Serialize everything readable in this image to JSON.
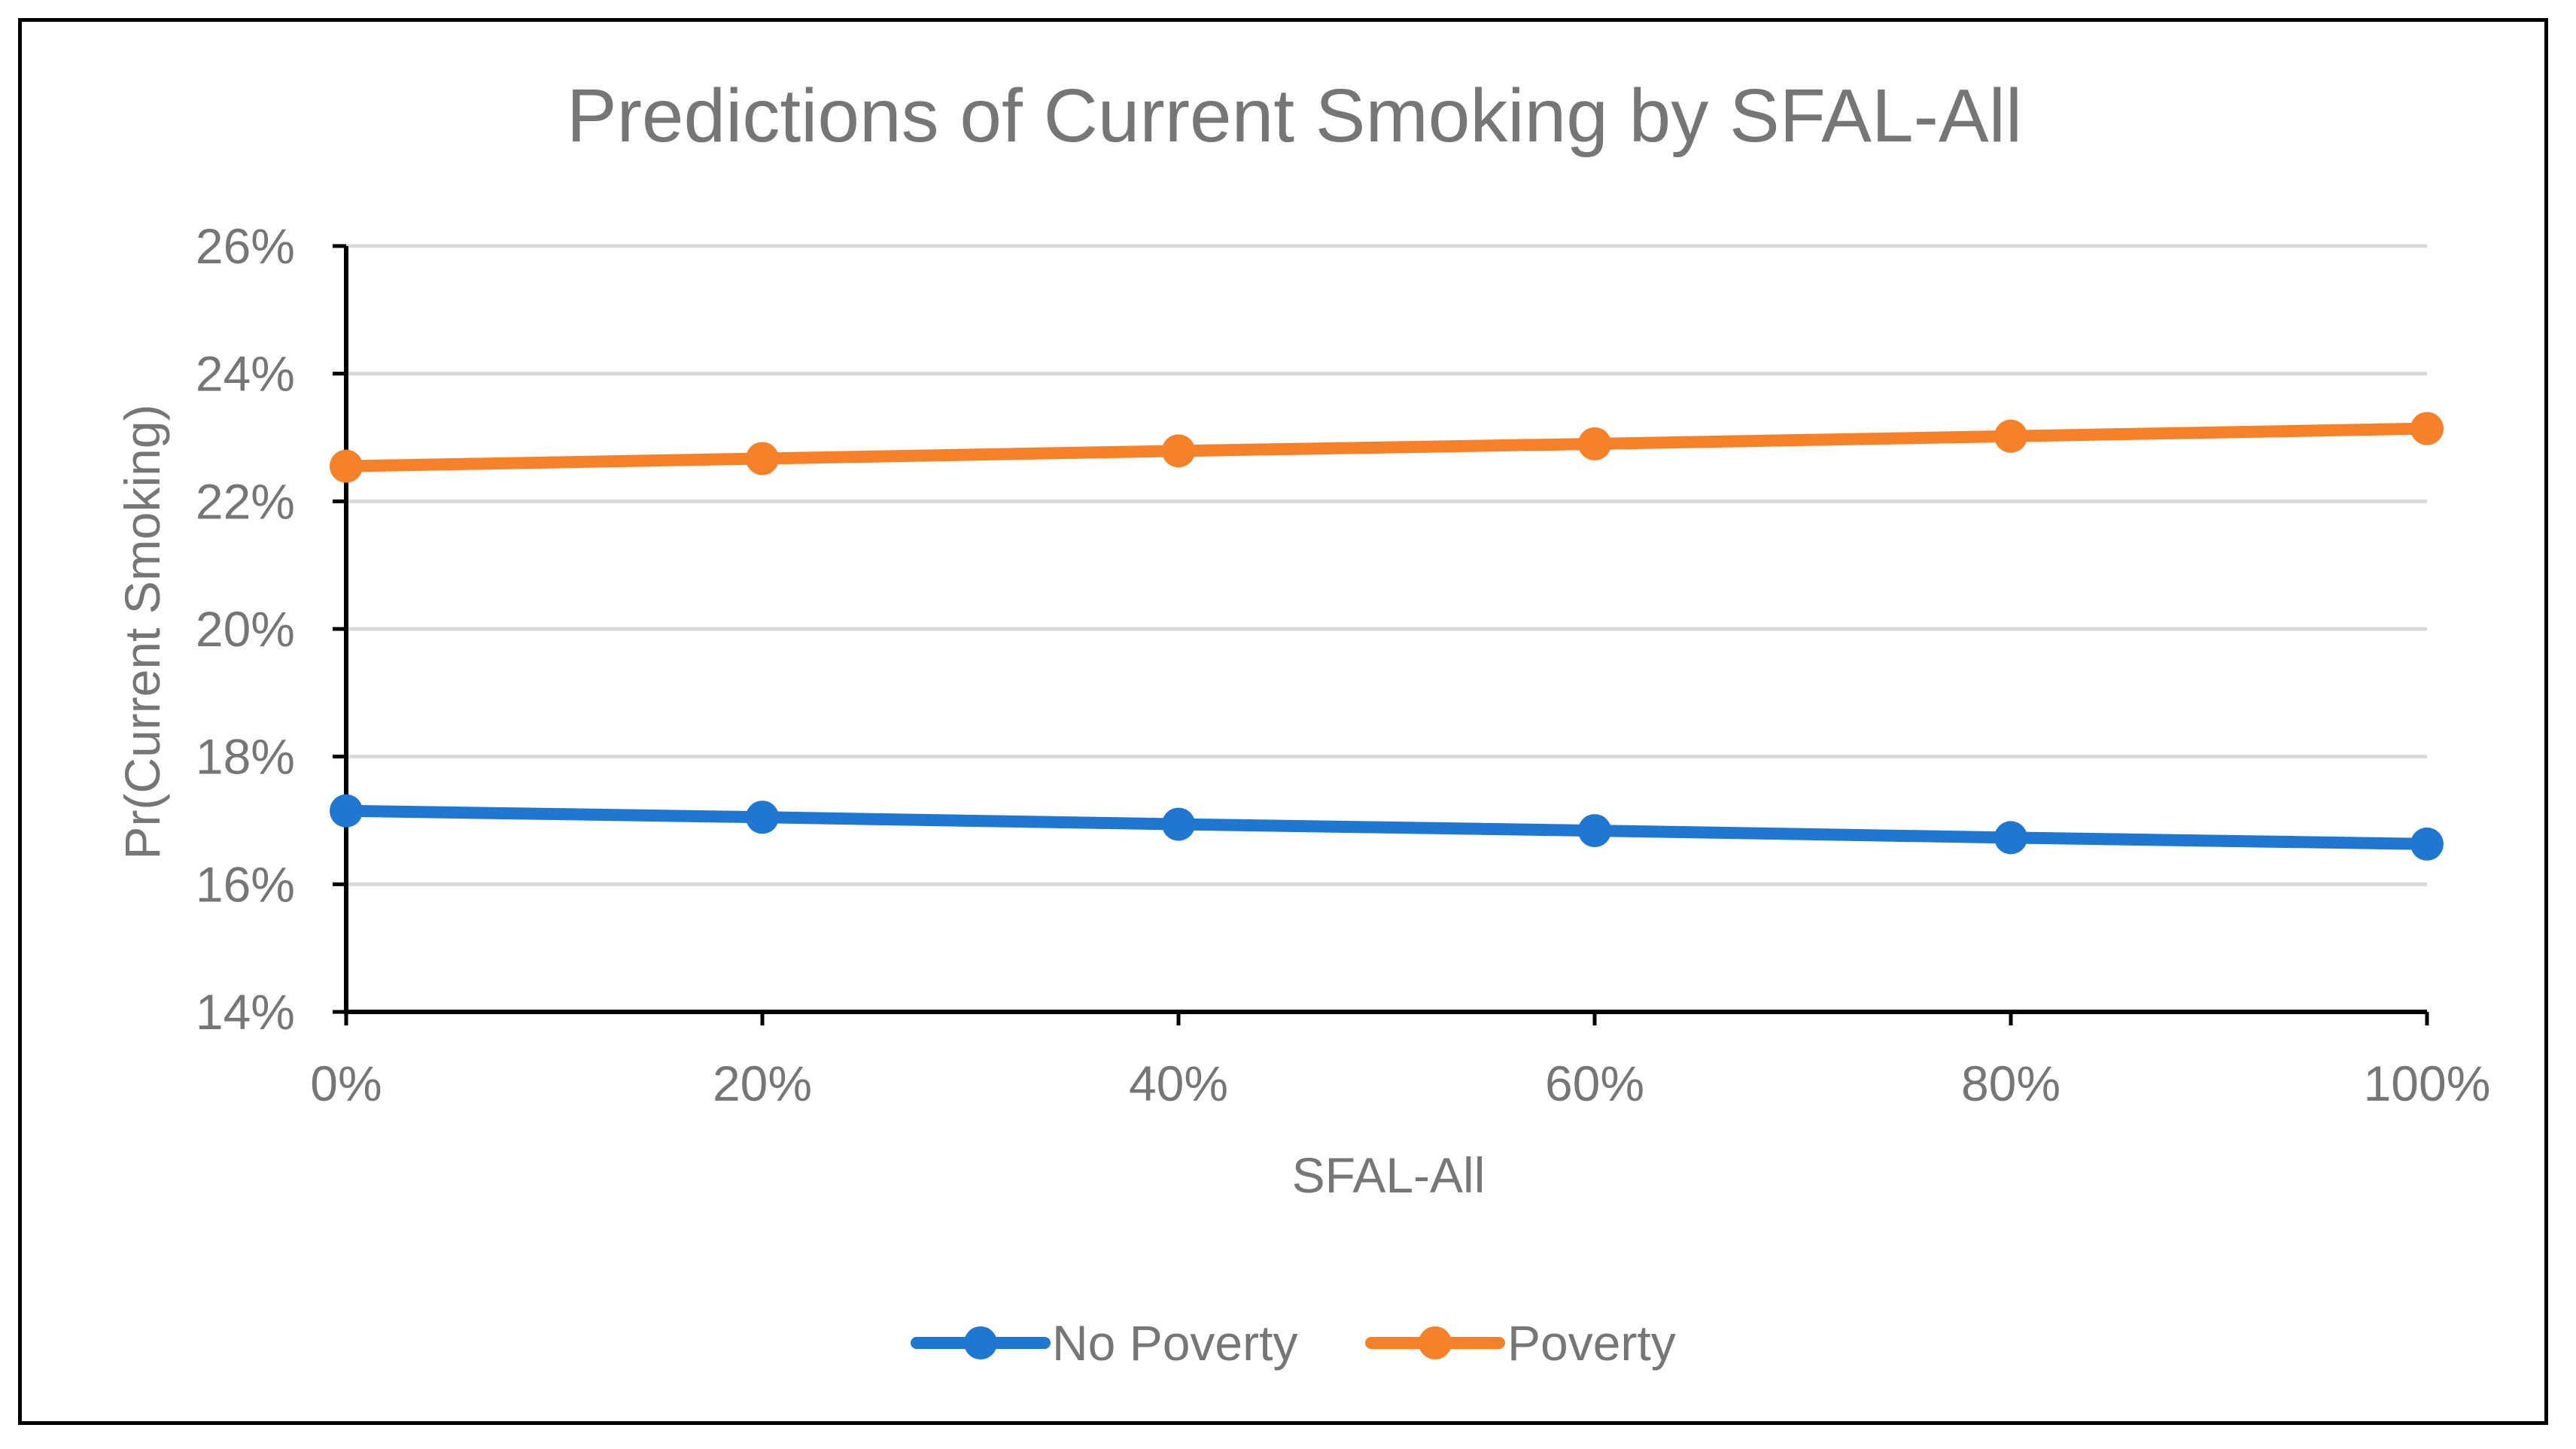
{
  "chart_data": {
    "type": "line",
    "title": "Predictions of Current Smoking by SFAL-All",
    "xlabel": "SFAL-All",
    "ylabel": "Pr(Current Smoking)",
    "x": [
      0,
      20,
      40,
      60,
      80,
      100
    ],
    "x_tick_labels": [
      "0%",
      "20%",
      "40%",
      "60%",
      "80%",
      "100%"
    ],
    "ylim": [
      14,
      26
    ],
    "y_ticks": [
      14,
      16,
      18,
      20,
      22,
      24,
      26
    ],
    "y_tick_labels": [
      "14%",
      "16%",
      "18%",
      "20%",
      "22%",
      "24%",
      "26%"
    ],
    "grid": true,
    "legend_position": "bottom",
    "series": [
      {
        "name": "No Poverty",
        "color": "#1f77d0",
        "values": [
          17.15,
          17.05,
          16.94,
          16.84,
          16.73,
          16.63
        ]
      },
      {
        "name": "Poverty",
        "color": "#f5822a",
        "values": [
          22.55,
          22.67,
          22.79,
          22.9,
          23.02,
          23.14
        ]
      }
    ]
  }
}
